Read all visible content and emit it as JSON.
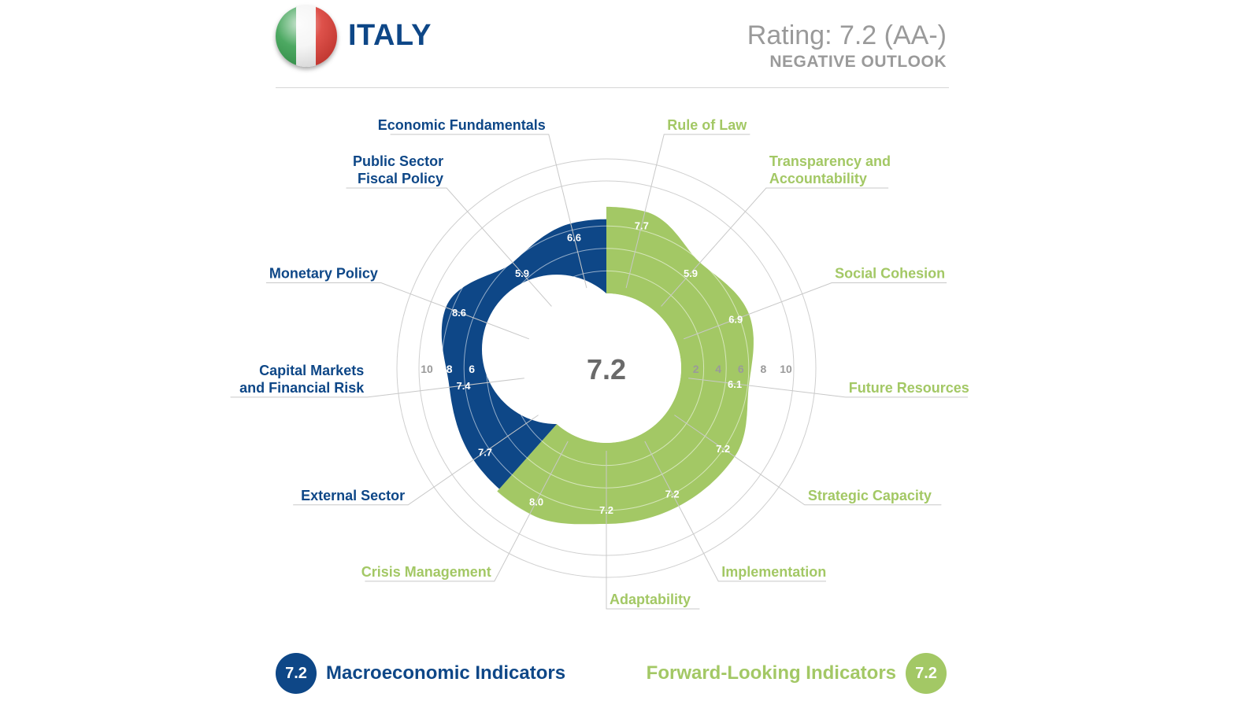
{
  "header": {
    "country": "ITALY",
    "rating": "Rating: 7.2 (AA-)",
    "outlook": "NEGATIVE OUTLOOK"
  },
  "colors": {
    "macro": "#0e4787",
    "forward": "#a3c865",
    "grid": "#cfcfcf",
    "tick": "#9a9a9a",
    "flag_green": "#2e9a47",
    "flag_white": "#f4f4f4",
    "flag_red": "#d8332b"
  },
  "chart_data": {
    "type": "radial-area",
    "center_value": "7.2",
    "scale": {
      "min": 0,
      "max": 10,
      "ticks": [
        2,
        4,
        6,
        8,
        10
      ]
    },
    "grid": true,
    "categories": [
      {
        "label": "Rule of Law",
        "value": 7.7,
        "value_label": "7.7",
        "group": "forward"
      },
      {
        "label": "Transparency and Accountability",
        "value": 5.9,
        "value_label": "5.9",
        "group": "forward"
      },
      {
        "label": "Social Cohesion",
        "value": 6.9,
        "value_label": "6.9",
        "group": "forward"
      },
      {
        "label": "Future Resources",
        "value": 6.1,
        "value_label": "6.1",
        "group": "forward"
      },
      {
        "label": "Strategic Capacity",
        "value": 7.2,
        "value_label": "7.2",
        "group": "forward"
      },
      {
        "label": "Implementation",
        "value": 7.2,
        "value_label": "7.2",
        "group": "forward"
      },
      {
        "label": "Adaptability",
        "value": 7.2,
        "value_label": "7.2",
        "group": "forward"
      },
      {
        "label": "Crisis Management",
        "value": 8.0,
        "value_label": "8.0",
        "group": "forward"
      },
      {
        "label": "External Sector",
        "value": 7.7,
        "value_label": "7.7",
        "group": "macro"
      },
      {
        "label": "Capital Markets and Financial Risk",
        "value": 7.4,
        "value_label": "7.4",
        "group": "macro"
      },
      {
        "label": "Monetary Policy",
        "value": 8.6,
        "value_label": "8.6",
        "group": "macro"
      },
      {
        "label": "Public Sector Fiscal Policy",
        "value": 5.9,
        "value_label": "5.9",
        "group": "macro"
      },
      {
        "label": "Economic Fundamentals",
        "value": 6.6,
        "value_label": "6.6",
        "group": "macro"
      }
    ]
  },
  "legend": {
    "macro": {
      "value": "7.2",
      "label": "Macroeconomic Indicators"
    },
    "forward": {
      "value": "7.2",
      "label": "Forward-Looking Indicators"
    }
  }
}
